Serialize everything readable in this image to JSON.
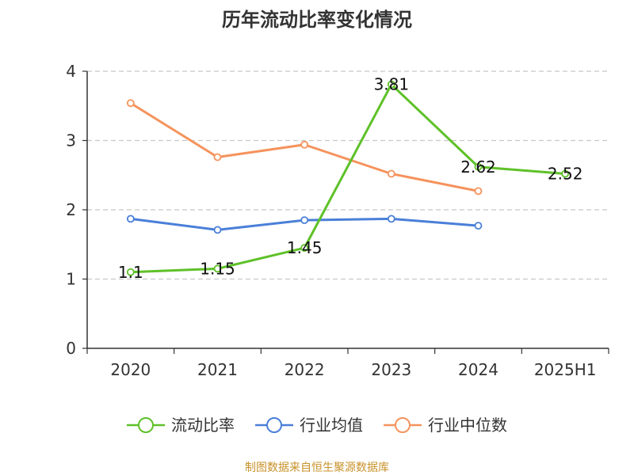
{
  "chart_data": {
    "type": "line",
    "title": "历年流动比率变化情况",
    "categories": [
      "2020",
      "2021",
      "2022",
      "2023",
      "2024",
      "2025H1"
    ],
    "ylim": [
      0,
      4
    ],
    "yticks": [
      0,
      1,
      2,
      3,
      4
    ],
    "grid": true,
    "legend_position": "bottom",
    "series": [
      {
        "name": "流动比率",
        "color": "#5ec128",
        "values": [
          1.1,
          1.15,
          1.45,
          3.81,
          2.62,
          2.52
        ],
        "labels": [
          "1.1",
          "1.15",
          "1.45",
          "3.81",
          "2.62",
          "2.52"
        ]
      },
      {
        "name": "行业均值",
        "color": "#4a7fd8",
        "values": [
          1.87,
          1.71,
          1.85,
          1.87,
          1.77,
          null
        ]
      },
      {
        "name": "行业中位数",
        "color": "#f5935c",
        "values": [
          3.54,
          2.76,
          2.94,
          2.52,
          2.27,
          null
        ]
      }
    ]
  },
  "footer": {
    "source": "制图数据来自恒生聚源数据库"
  }
}
